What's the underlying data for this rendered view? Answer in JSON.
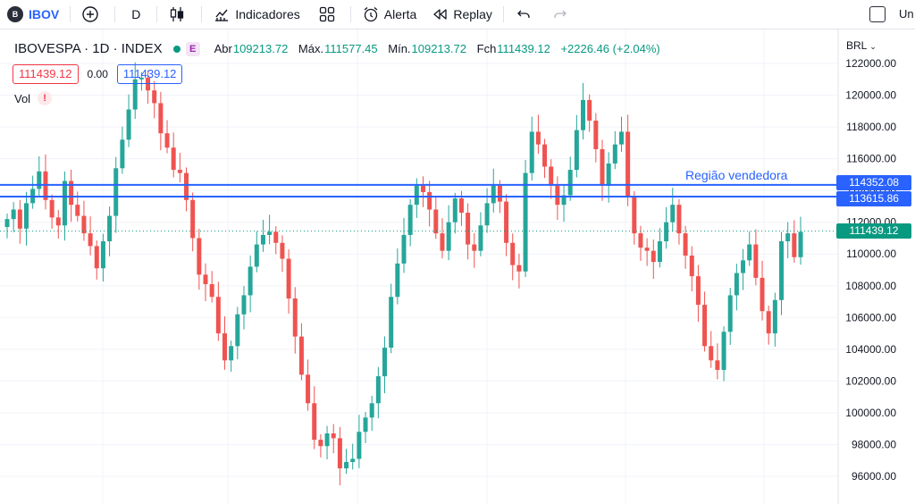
{
  "toolbar": {
    "symbol_logo": "B",
    "symbol": "IBOV",
    "interval": "D",
    "indicators_label": "Indicadores",
    "alert_label": "Alerta",
    "replay_label": "Replay",
    "cut_text": "Un"
  },
  "legend": {
    "title": "IBOVESPA · 1D · INDEX",
    "badge": "E",
    "open_label": "Abr",
    "open": "109213.72",
    "high_label": "Máx.",
    "high": "111577.45",
    "low_label": "Mín.",
    "low": "109213.72",
    "close_label": "Fch",
    "close": "111439.12",
    "change": "+2226.46 (+2.04%)",
    "bid": "111439.12",
    "spread": "0.00",
    "ask": "111439.12",
    "volume_label": "Vol",
    "warning": "!"
  },
  "axis": {
    "currency": "BRL",
    "currency_icon": "chevron-down-icon"
  },
  "annotation": {
    "zone_label": "Região vendedora",
    "upper_line": "114352.08",
    "lower_line": "113615.86",
    "last_price": "111439.12"
  },
  "colors": {
    "up": "#26a69a",
    "down": "#ef5350",
    "line": "#2962ff",
    "last_price": "#089981"
  },
  "chart_data": {
    "type": "candlestick",
    "title": "IBOVESPA · 1D · INDEX",
    "y_label": "BRL",
    "y_ticks": [
      96000,
      98000,
      100000,
      102000,
      104000,
      106000,
      108000,
      110000,
      112000,
      114000,
      116000,
      118000,
      120000,
      122000
    ],
    "ylim": [
      94800,
      123000
    ],
    "horizontal_lines": [
      114352.08,
      113615.86
    ],
    "last_price": 111439.12,
    "grid": true,
    "close_path": [
      112200,
      112800,
      111600,
      113200,
      114100,
      115200,
      113400,
      112300,
      111800,
      114600,
      113100,
      112400,
      111300,
      110500,
      109100,
      110800,
      112400,
      115400,
      117200,
      119100,
      121000,
      121100,
      120300,
      119500,
      117600,
      116700,
      115300,
      115100,
      113400,
      111000,
      108700,
      108100,
      107300,
      105000,
      103300,
      104200,
      106200,
      107400,
      109200,
      110600,
      111200,
      111400,
      110700,
      109700,
      107200,
      104800,
      102400,
      100600,
      98300,
      97900,
      98700,
      98400,
      96500,
      96900,
      97100,
      98800,
      99700,
      100600,
      102300,
      104100,
      107300,
      109400,
      111200,
      113100,
      114300,
      113900,
      112800,
      111300,
      110200,
      112000,
      113500,
      112600,
      110600,
      110200,
      111800,
      113200,
      114300,
      113300,
      110700,
      109300,
      108900,
      115100,
      117700,
      116900,
      115500,
      114300,
      113100,
      113700,
      115300,
      117800,
      119700,
      118400,
      116600,
      114300,
      115700,
      116900,
      117700,
      113600,
      111300,
      110400,
      110200,
      109500,
      110800,
      112000,
      113100,
      111300,
      109900,
      108600,
      106800,
      104200,
      103300,
      102700,
      105100,
      107400,
      108800,
      109600,
      110600,
      108500,
      106400,
      105000,
      107100,
      110800,
      111300,
      109800,
      111400
    ]
  }
}
